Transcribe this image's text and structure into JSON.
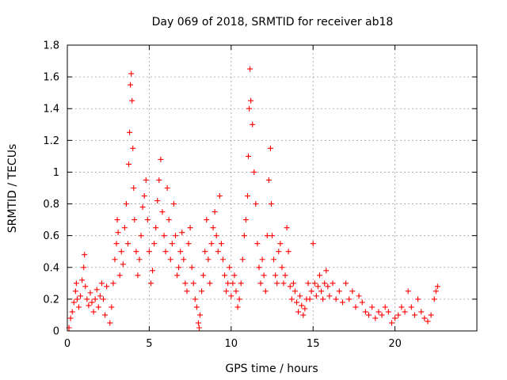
{
  "chart_data": {
    "type": "scatter",
    "title": "Day 069 of 2018, SRMTID for receiver ab18",
    "xlabel": "GPS time / hours",
    "ylabel": "SRMTID / TECUs",
    "xlim": [
      0,
      25
    ],
    "ylim": [
      0,
      1.8
    ],
    "xticks": [
      0,
      5,
      10,
      15,
      20
    ],
    "xtick_labels": [
      "0",
      "5",
      "10",
      "15",
      "20"
    ],
    "yticks": [
      0,
      0.2,
      0.4,
      0.6,
      0.8,
      1.0,
      1.2,
      1.4,
      1.6,
      1.8
    ],
    "ytick_labels": [
      "0",
      "0.2",
      "0.4",
      "0.6",
      "0.8",
      "1",
      "1.2",
      "1.4",
      "1.6",
      "1.8"
    ],
    "grid": true,
    "marker": "+",
    "color": "#ff0000",
    "series": [
      {
        "name": "SRMTID",
        "points": [
          [
            0.1,
            0.02
          ],
          [
            0.2,
            0.08
          ],
          [
            0.3,
            0.12
          ],
          [
            0.4,
            0.18
          ],
          [
            0.5,
            0.25
          ],
          [
            0.55,
            0.3
          ],
          [
            0.6,
            0.2
          ],
          [
            0.7,
            0.15
          ],
          [
            0.8,
            0.22
          ],
          [
            0.9,
            0.32
          ],
          [
            1.0,
            0.4
          ],
          [
            1.05,
            0.48
          ],
          [
            1.1,
            0.28
          ],
          [
            1.2,
            0.2
          ],
          [
            1.3,
            0.16
          ],
          [
            1.4,
            0.24
          ],
          [
            1.5,
            0.18
          ],
          [
            1.6,
            0.12
          ],
          [
            1.7,
            0.2
          ],
          [
            1.8,
            0.26
          ],
          [
            1.9,
            0.15
          ],
          [
            2.0,
            0.22
          ],
          [
            2.1,
            0.3
          ],
          [
            2.2,
            0.2
          ],
          [
            2.3,
            0.1
          ],
          [
            2.4,
            0.28
          ],
          [
            2.6,
            0.05
          ],
          [
            2.7,
            0.15
          ],
          [
            2.8,
            0.3
          ],
          [
            2.9,
            0.45
          ],
          [
            3.0,
            0.55
          ],
          [
            3.05,
            0.7
          ],
          [
            3.1,
            0.62
          ],
          [
            3.2,
            0.35
          ],
          [
            3.3,
            0.5
          ],
          [
            3.4,
            0.42
          ],
          [
            3.5,
            0.65
          ],
          [
            3.6,
            0.8
          ],
          [
            3.7,
            0.55
          ],
          [
            3.75,
            1.05
          ],
          [
            3.8,
            1.25
          ],
          [
            3.85,
            1.55
          ],
          [
            3.9,
            1.62
          ],
          [
            3.95,
            1.45
          ],
          [
            4.0,
            1.15
          ],
          [
            4.05,
            0.9
          ],
          [
            4.1,
            0.7
          ],
          [
            4.2,
            0.5
          ],
          [
            4.3,
            0.35
          ],
          [
            4.4,
            0.45
          ],
          [
            4.5,
            0.6
          ],
          [
            4.6,
            0.78
          ],
          [
            4.7,
            0.85
          ],
          [
            4.8,
            0.95
          ],
          [
            4.9,
            0.7
          ],
          [
            5.0,
            0.5
          ],
          [
            5.1,
            0.3
          ],
          [
            5.2,
            0.38
          ],
          [
            5.3,
            0.55
          ],
          [
            5.4,
            0.65
          ],
          [
            5.5,
            0.82
          ],
          [
            5.6,
            0.95
          ],
          [
            5.7,
            1.08
          ],
          [
            5.8,
            0.75
          ],
          [
            5.9,
            0.6
          ],
          [
            6.0,
            0.5
          ],
          [
            6.1,
            0.9
          ],
          [
            6.2,
            0.7
          ],
          [
            6.3,
            0.45
          ],
          [
            6.4,
            0.55
          ],
          [
            6.5,
            0.8
          ],
          [
            6.6,
            0.6
          ],
          [
            6.7,
            0.35
          ],
          [
            6.8,
            0.4
          ],
          [
            6.9,
            0.5
          ],
          [
            7.0,
            0.62
          ],
          [
            7.1,
            0.45
          ],
          [
            7.2,
            0.3
          ],
          [
            7.3,
            0.25
          ],
          [
            7.4,
            0.55
          ],
          [
            7.5,
            0.65
          ],
          [
            7.6,
            0.4
          ],
          [
            7.7,
            0.3
          ],
          [
            7.8,
            0.2
          ],
          [
            7.9,
            0.15
          ],
          [
            8.0,
            0.05
          ],
          [
            8.05,
            0.02
          ],
          [
            8.1,
            0.1
          ],
          [
            8.2,
            0.25
          ],
          [
            8.3,
            0.35
          ],
          [
            8.4,
            0.5
          ],
          [
            8.5,
            0.7
          ],
          [
            8.6,
            0.45
          ],
          [
            8.7,
            0.3
          ],
          [
            8.8,
            0.55
          ],
          [
            8.9,
            0.65
          ],
          [
            9.0,
            0.75
          ],
          [
            9.1,
            0.6
          ],
          [
            9.2,
            0.5
          ],
          [
            9.3,
            0.85
          ],
          [
            9.4,
            0.55
          ],
          [
            9.5,
            0.45
          ],
          [
            9.6,
            0.35
          ],
          [
            9.7,
            0.25
          ],
          [
            9.8,
            0.3
          ],
          [
            9.9,
            0.4
          ],
          [
            10.0,
            0.22
          ],
          [
            10.1,
            0.3
          ],
          [
            10.2,
            0.35
          ],
          [
            10.3,
            0.25
          ],
          [
            10.4,
            0.15
          ],
          [
            10.5,
            0.2
          ],
          [
            10.6,
            0.3
          ],
          [
            10.7,
            0.45
          ],
          [
            10.8,
            0.6
          ],
          [
            10.9,
            0.7
          ],
          [
            11.0,
            0.85
          ],
          [
            11.05,
            1.1
          ],
          [
            11.1,
            1.4
          ],
          [
            11.15,
            1.65
          ],
          [
            11.2,
            1.45
          ],
          [
            11.3,
            1.3
          ],
          [
            11.4,
            1.0
          ],
          [
            11.5,
            0.8
          ],
          [
            11.6,
            0.55
          ],
          [
            11.7,
            0.4
          ],
          [
            11.8,
            0.3
          ],
          [
            11.9,
            0.45
          ],
          [
            12.0,
            0.35
          ],
          [
            12.1,
            0.25
          ],
          [
            12.2,
            0.6
          ],
          [
            12.3,
            0.95
          ],
          [
            12.4,
            1.15
          ],
          [
            12.45,
            0.8
          ],
          [
            12.5,
            0.6
          ],
          [
            12.6,
            0.45
          ],
          [
            12.7,
            0.35
          ],
          [
            12.8,
            0.3
          ],
          [
            12.9,
            0.5
          ],
          [
            13.0,
            0.55
          ],
          [
            13.1,
            0.4
          ],
          [
            13.2,
            0.3
          ],
          [
            13.3,
            0.35
          ],
          [
            13.4,
            0.65
          ],
          [
            13.5,
            0.5
          ],
          [
            13.6,
            0.28
          ],
          [
            13.7,
            0.2
          ],
          [
            13.8,
            0.3
          ],
          [
            13.9,
            0.25
          ],
          [
            14.0,
            0.18
          ],
          [
            14.1,
            0.12
          ],
          [
            14.2,
            0.22
          ],
          [
            14.3,
            0.16
          ],
          [
            14.4,
            0.1
          ],
          [
            14.5,
            0.14
          ],
          [
            14.6,
            0.2
          ],
          [
            14.7,
            0.3
          ],
          [
            14.8,
            0.2
          ],
          [
            14.9,
            0.25
          ],
          [
            15.0,
            0.55
          ],
          [
            15.1,
            0.3
          ],
          [
            15.2,
            0.22
          ],
          [
            15.3,
            0.28
          ],
          [
            15.4,
            0.35
          ],
          [
            15.5,
            0.25
          ],
          [
            15.6,
            0.2
          ],
          [
            15.7,
            0.3
          ],
          [
            15.8,
            0.38
          ],
          [
            15.9,
            0.28
          ],
          [
            16.0,
            0.22
          ],
          [
            16.2,
            0.3
          ],
          [
            16.4,
            0.2
          ],
          [
            16.6,
            0.25
          ],
          [
            16.8,
            0.18
          ],
          [
            17.0,
            0.3
          ],
          [
            17.2,
            0.2
          ],
          [
            17.4,
            0.25
          ],
          [
            17.6,
            0.15
          ],
          [
            17.8,
            0.22
          ],
          [
            18.0,
            0.18
          ],
          [
            18.2,
            0.12
          ],
          [
            18.4,
            0.1
          ],
          [
            18.6,
            0.15
          ],
          [
            18.8,
            0.08
          ],
          [
            19.0,
            0.12
          ],
          [
            19.2,
            0.1
          ],
          [
            19.4,
            0.15
          ],
          [
            19.6,
            0.12
          ],
          [
            19.8,
            0.05
          ],
          [
            20.0,
            0.08
          ],
          [
            20.2,
            0.1
          ],
          [
            20.4,
            0.15
          ],
          [
            20.6,
            0.12
          ],
          [
            20.8,
            0.25
          ],
          [
            21.0,
            0.15
          ],
          [
            21.2,
            0.1
          ],
          [
            21.4,
            0.2
          ],
          [
            21.6,
            0.12
          ],
          [
            21.8,
            0.08
          ],
          [
            22.0,
            0.06
          ],
          [
            22.2,
            0.1
          ],
          [
            22.4,
            0.2
          ],
          [
            22.5,
            0.25
          ],
          [
            22.6,
            0.28
          ]
        ]
      }
    ]
  }
}
